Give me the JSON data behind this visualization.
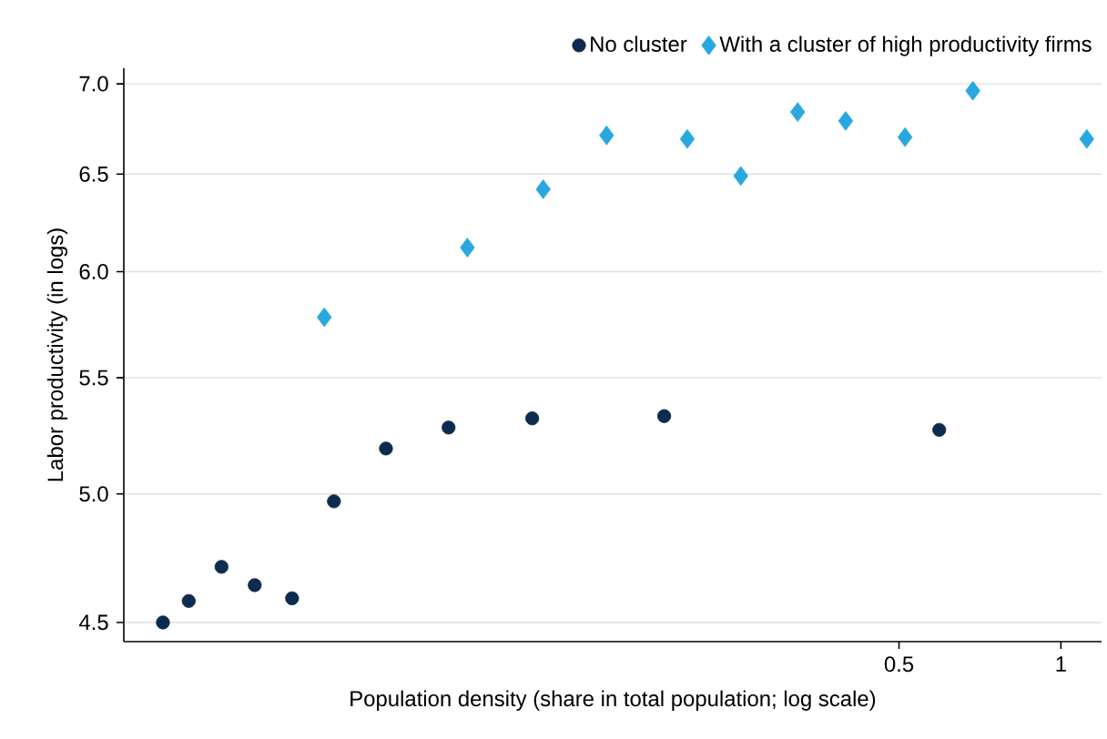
{
  "chart_data": {
    "type": "scatter",
    "xlabel": "Population density (share in total population; log scale)",
    "ylabel": "Labor productivity (in logs)",
    "log": "xy",
    "grid": "y",
    "legend": "top right",
    "xlim": [
      0.0181,
      1.19
    ],
    "ylim": [
      4.43,
      7.09
    ],
    "xticks": [
      0.5,
      1
    ],
    "yticks": [
      {
        "value": 4.5,
        "label": "4.5"
      },
      {
        "value": 5,
        "label": "5.0"
      },
      {
        "value": 5.5,
        "label": "5.5"
      },
      {
        "value": 6,
        "label": "6.0"
      },
      {
        "value": 6.5,
        "label": "6.5"
      },
      {
        "value": 7,
        "label": "7.0"
      }
    ],
    "series": [
      {
        "name": "No cluster",
        "color": "#0d2b4e",
        "marker": "circle",
        "x": [
          0.0214,
          0.0239,
          0.0275,
          0.0317,
          0.0372,
          0.0445,
          0.0556,
          0.0727,
          0.104,
          0.183,
          0.594
        ],
        "values": [
          4.5,
          4.58,
          4.71,
          4.64,
          4.59,
          4.97,
          5.19,
          5.28,
          5.32,
          5.33,
          5.27
        ]
      },
      {
        "name": "With a cluster of high productivity firms",
        "color": "#29a8e0",
        "marker": "diamond",
        "x": [
          0.0427,
          0.0788,
          0.109,
          0.143,
          0.202,
          0.254,
          0.324,
          0.398,
          0.513,
          0.686,
          1.117
        ],
        "values": [
          5.78,
          6.12,
          6.42,
          6.71,
          6.69,
          6.49,
          6.84,
          6.79,
          6.7,
          6.96,
          6.69
        ]
      }
    ]
  }
}
